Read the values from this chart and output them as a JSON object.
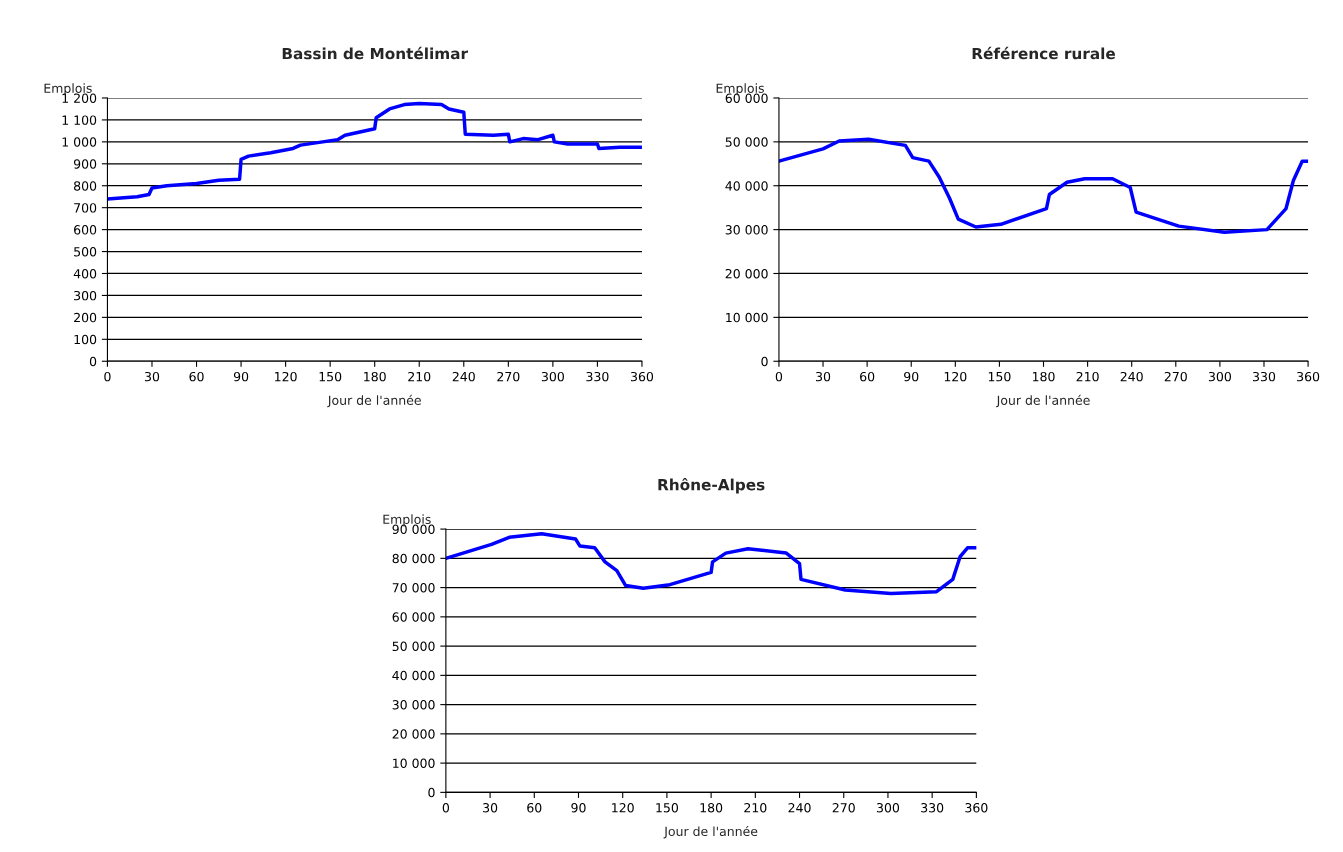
{
  "chart_data": [
    {
      "type": "line",
      "title": "Bassin de Montélimar",
      "xlabel": "Jour de l'année",
      "ylabel": "Emplois",
      "grid": "y",
      "marker": "none",
      "line_style": "solid",
      "xlim": [
        0,
        360
      ],
      "xticks": [
        0,
        30,
        60,
        90,
        120,
        150,
        180,
        210,
        240,
        270,
        300,
        330,
        360
      ],
      "ylim": [
        0,
        1200
      ],
      "yticks": [
        0,
        100,
        200,
        300,
        400,
        500,
        600,
        700,
        800,
        900,
        {
          "value": 1000,
          "label": "1 000"
        },
        {
          "value": 1100,
          "label": "1 100"
        },
        {
          "value": 1200,
          "label": "1 200"
        }
      ],
      "series": [
        {
          "color": "#0000ff",
          "x": [
            0,
            20,
            28,
            30,
            40,
            60,
            75,
            89,
            90,
            95,
            110,
            125,
            130,
            145,
            155,
            160,
            180,
            181,
            190,
            200,
            210,
            225,
            230,
            240,
            241,
            260,
            270,
            271,
            280,
            290,
            300,
            301,
            310,
            330,
            331,
            345,
            360
          ],
          "values": [
            740,
            750,
            760,
            790,
            800,
            810,
            825,
            830,
            920,
            935,
            950,
            970,
            985,
            1000,
            1010,
            1030,
            1060,
            1110,
            1150,
            1170,
            1175,
            1170,
            1150,
            1135,
            1035,
            1030,
            1035,
            1000,
            1015,
            1010,
            1030,
            1000,
            990,
            990,
            970,
            975,
            975
          ]
        }
      ]
    },
    {
      "type": "line",
      "title": "Référence rurale",
      "xlabel": "Jour de l'année",
      "ylabel": "Emplois",
      "grid": "y",
      "marker": "none",
      "line_style": "solid",
      "xlim": [
        0,
        360
      ],
      "xticks": [
        0,
        30,
        60,
        90,
        120,
        150,
        180,
        210,
        240,
        270,
        300,
        330,
        360
      ],
      "ylim": [
        0,
        60000
      ],
      "yticks": [
        0,
        {
          "value": 10000,
          "label": "10 000"
        },
        {
          "value": 20000,
          "label": "20 000"
        },
        {
          "value": 30000,
          "label": "30 000"
        },
        {
          "value": 40000,
          "label": "40 000"
        },
        {
          "value": 50000,
          "label": "50 000"
        },
        {
          "value": 60000,
          "label": "60 000"
        }
      ],
      "series": [
        {
          "color": "#0000ff",
          "x": [
            0,
            30,
            41,
            61,
            86,
            91,
            102,
            109,
            116,
            122,
            134,
            151,
            182,
            184,
            196,
            208,
            227,
            239,
            243,
            272,
            303,
            332,
            345,
            350,
            356,
            360
          ],
          "values": [
            45600,
            48400,
            50200,
            50600,
            49200,
            46400,
            45600,
            42000,
            37200,
            32400,
            30600,
            31200,
            34800,
            38000,
            40800,
            41600,
            41600,
            39600,
            34000,
            30800,
            29400,
            30000,
            34800,
            41200,
            45600,
            45600
          ]
        }
      ]
    },
    {
      "type": "line",
      "title": "Rhône-Alpes",
      "xlabel": "Jour de l'année",
      "ylabel": "Emplois",
      "grid": "y",
      "marker": "none",
      "line_style": "solid",
      "xlim": [
        0,
        360
      ],
      "xticks": [
        0,
        30,
        60,
        90,
        120,
        150,
        180,
        210,
        240,
        270,
        300,
        330,
        360
      ],
      "ylim": [
        0,
        90000
      ],
      "yticks": [
        0,
        {
          "value": 10000,
          "label": "10 000"
        },
        {
          "value": 20000,
          "label": "20 000"
        },
        {
          "value": 30000,
          "label": "30 000"
        },
        {
          "value": 40000,
          "label": "40 000"
        },
        {
          "value": 50000,
          "label": "50 000"
        },
        {
          "value": 60000,
          "label": "60 000"
        },
        {
          "value": 70000,
          "label": "70 000"
        },
        {
          "value": 80000,
          "label": "80 000"
        },
        {
          "value": 90000,
          "label": "90 000"
        }
      ],
      "series": [
        {
          "color": "#0000ff",
          "x": [
            0,
            31,
            43,
            65,
            88,
            91,
            101,
            108,
            116,
            122,
            134,
            152,
            180,
            181,
            190,
            205,
            231,
            240,
            241,
            271,
            302,
            333,
            344,
            349,
            354,
            360
          ],
          "values": [
            80000,
            84800,
            87200,
            88400,
            86600,
            84200,
            83600,
            78800,
            75800,
            70700,
            69800,
            71000,
            75200,
            78800,
            81800,
            83300,
            81800,
            78200,
            72800,
            69200,
            68000,
            68600,
            72800,
            80600,
            83600,
            83600
          ]
        }
      ]
    }
  ]
}
